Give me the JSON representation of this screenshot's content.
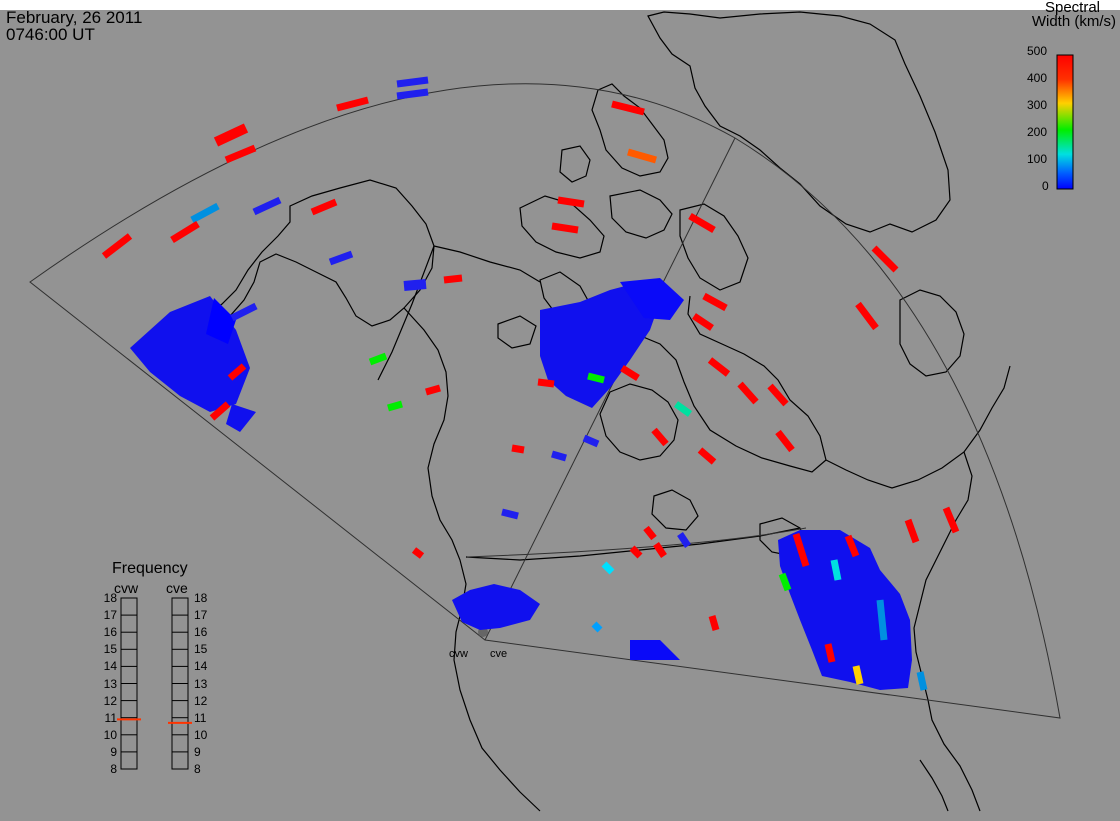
{
  "header": {
    "date": "February, 26 2011",
    "time": "0746:00 UT"
  },
  "legend": {
    "title_line1": "Spectral",
    "title_line2": "Width (km/s)",
    "ticks": [
      "500",
      "400",
      "300",
      "200",
      "100",
      "0"
    ],
    "colors": [
      "#ff0000",
      "#ff5a00",
      "#ffd000",
      "#00ee00",
      "#00e0e0",
      "#0000ff"
    ]
  },
  "frequency": {
    "title": "Frequency",
    "radar_left": "cvw",
    "radar_right": "cve",
    "scale": [
      "18",
      "17",
      "16",
      "15",
      "14",
      "13",
      "12",
      "11",
      "10",
      "9",
      "8"
    ],
    "cvw_value": 10.9,
    "cve_value": 10.7,
    "indicator_color": "#ff3300"
  },
  "radars": {
    "west_label": "cvw",
    "east_label": "cve"
  },
  "colors": {
    "background": "#939393",
    "coastline": "#000000",
    "fov": "#303030"
  }
}
